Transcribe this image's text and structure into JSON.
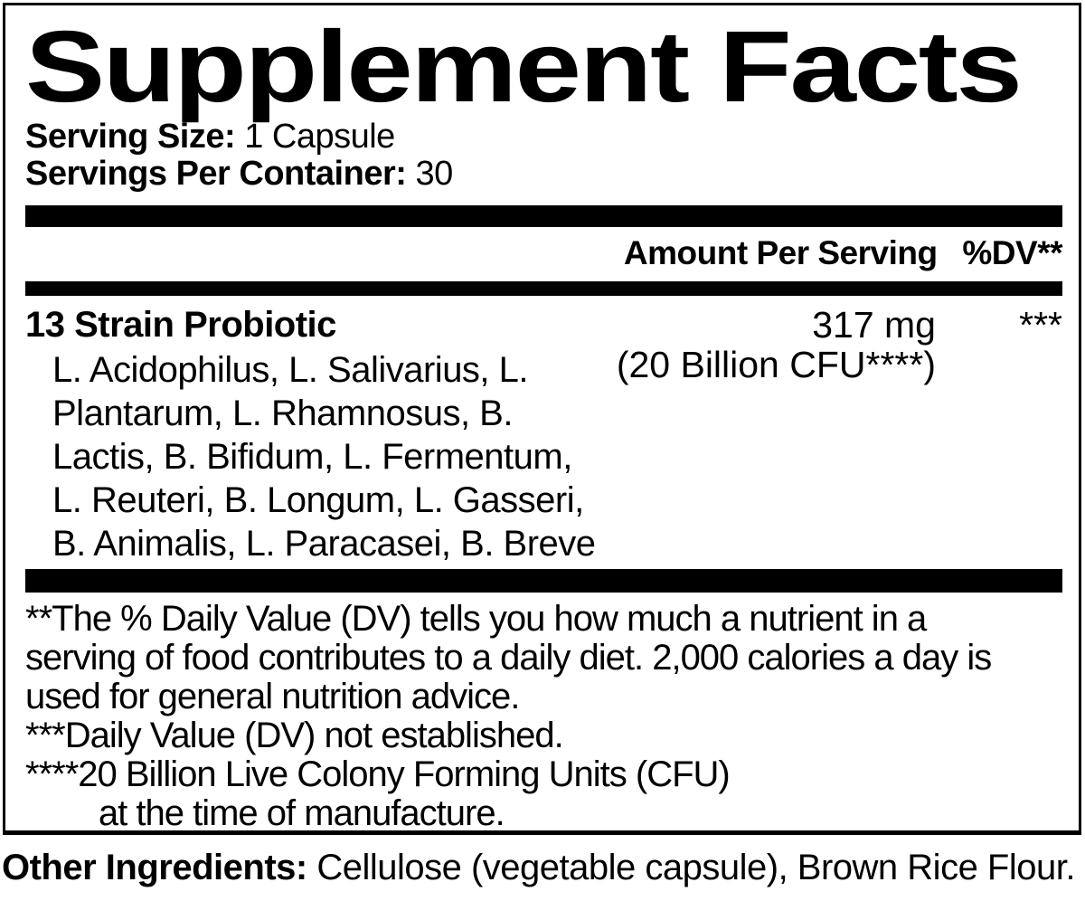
{
  "label": {
    "title": "Supplement Facts",
    "serving_size": {
      "label": "Serving Size:",
      "value": "1 Capsule"
    },
    "servings_per_container": {
      "label": "Servings Per Container:",
      "value": "30"
    },
    "column_header": {
      "amount": "Amount Per Serving",
      "dv": "%DV**"
    },
    "ingredient_row": {
      "name": "13 Strain Probiotic",
      "amount": "317 mg\n(20 Billion CFU****)",
      "dv": "***",
      "strains": "L. Acidophilus, L. Salivarius, L.\nPlantarum, L. Rhamnosus, B.\nLactis, B. Bifidum, L. Fermentum,\nL. Reuteri, B. Longum, L. Gasseri,\nB. Animalis, L. Paracasei, B. Breve"
    },
    "footnotes": "**The % Daily Value (DV) tells you how much a nutrient in a\nserving of food contributes to a daily diet. 2,000 calories a day is\nused for general nutrition advice.\n***Daily Value (DV) not established.\n****20 Billion Live Colony Forming Units (CFU)\n        at the time of manufacture.",
    "other_ingredients": {
      "label": "Other Ingredients:",
      "text": "Cellulose (vegetable capsule), Brown Rice Flour."
    }
  },
  "colors": {
    "text": "#000000",
    "background": "#ffffff",
    "bar": "#000000"
  }
}
